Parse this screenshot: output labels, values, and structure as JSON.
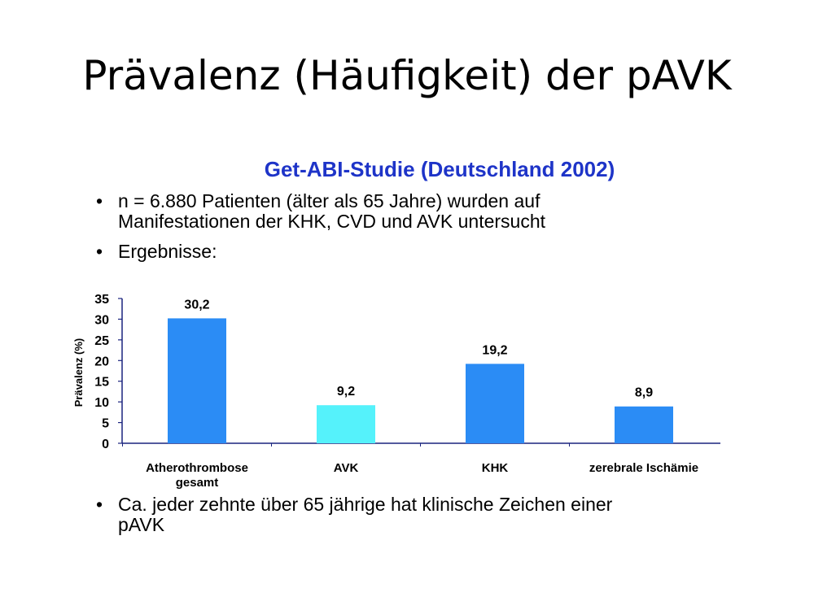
{
  "slide": {
    "title": "Prävalenz (Häufigkeit) der pAVK",
    "study_title": "Get-ABI-Studie (Deutschland 2002)",
    "bullets": [
      {
        "marker": "•",
        "line1": "n = 6.880  Patienten (älter als 65 Jahre) wurden auf",
        "line2": "Manifestationen der KHK, CVD und AVK untersucht"
      },
      {
        "marker": "•",
        "line1": "Ergebnisse:"
      },
      {
        "marker": "•",
        "line1": "Ca. jeder zehnte über 65 jährige hat klinische Zeichen einer",
        "line2": "pAVK"
      }
    ]
  },
  "chart_data": {
    "type": "bar",
    "title": "",
    "xlabel": "",
    "ylabel": "Prävalenz (%)",
    "ylim": [
      0,
      35
    ],
    "yticks": [
      "0",
      "5",
      "10",
      "15",
      "20",
      "25",
      "30",
      "35"
    ],
    "grid": false,
    "categories": [
      [
        "Atherothrombose",
        "gesamt"
      ],
      [
        "AVK"
      ],
      [
        "KHK"
      ],
      [
        "zerebrale Ischämie"
      ]
    ],
    "values": [
      30.2,
      9.2,
      19.2,
      8.9
    ],
    "value_labels": [
      "30,2",
      "9,2",
      "19,2",
      "8,9"
    ],
    "colors": [
      "#2b8cf5",
      "#55f2fb",
      "#2b8cf5",
      "#2b8cf5"
    ],
    "axis_color": "#1a237e"
  }
}
